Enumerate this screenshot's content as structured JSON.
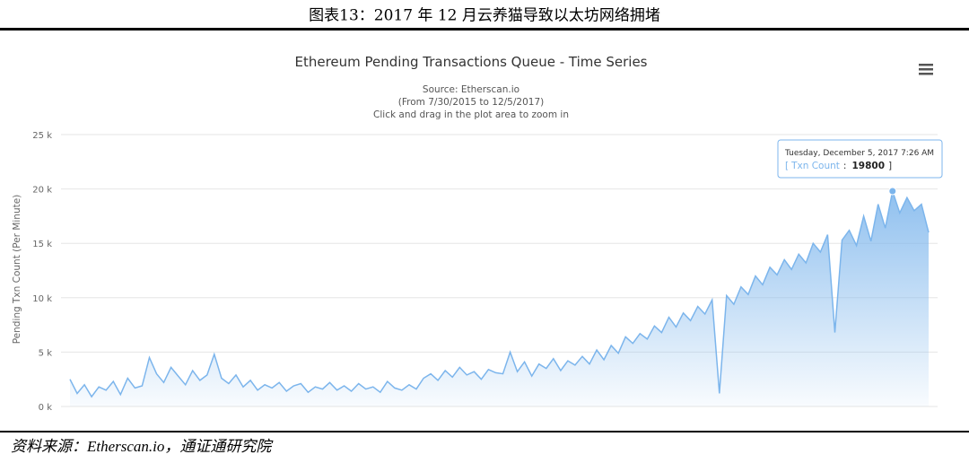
{
  "header": {
    "title": "图表13：2017 年 12 月云养猫导致以太坊网络拥堵"
  },
  "footer": {
    "source": "资料来源：Etherscan.io，通证通研究院"
  },
  "chart_data": {
    "type": "area",
    "title": "Ethereum Pending Transactions Queue - Time Series",
    "subtitle": [
      "Source: Etherscan.io",
      "(From 7/30/2015 to 12/5/2017)",
      "Click and drag in the plot area to zoom in"
    ],
    "y_label": "Pending Txn Count (Per Minute)",
    "ylim": [
      0,
      25000
    ],
    "yticks": [
      {
        "value": 0,
        "label": "0 k"
      },
      {
        "value": 5000,
        "label": "5 k"
      },
      {
        "value": 10000,
        "label": "10 k"
      },
      {
        "value": 15000,
        "label": "15 k"
      },
      {
        "value": 20000,
        "label": "20 k"
      },
      {
        "value": 25000,
        "label": "25 k"
      }
    ],
    "grid": true,
    "series": [
      {
        "name": "Txn Count",
        "color": "#7cb5ec",
        "values": [
          2500,
          1200,
          2000,
          900,
          1800,
          1500,
          2300,
          1100,
          2600,
          1700,
          1900,
          4500,
          3000,
          2200,
          3600,
          2800,
          2000,
          3300,
          2400,
          2900,
          4800,
          2600,
          2100,
          2900,
          1800,
          2400,
          1500,
          2000,
          1700,
          2200,
          1400,
          1900,
          2100,
          1300,
          1800,
          1600,
          2200,
          1500,
          1900,
          1400,
          2100,
          1600,
          1800,
          1300,
          2300,
          1700,
          1500,
          2000,
          1600,
          2600,
          3000,
          2400,
          3300,
          2700,
          3600,
          2900,
          3200,
          2500,
          3400,
          3100,
          3000,
          5000,
          3200,
          4100,
          2800,
          3900,
          3500,
          4400,
          3300,
          4200,
          3800,
          4600,
          3900,
          5200,
          4300,
          5600,
          4900,
          6400,
          5800,
          6700,
          6200,
          7400,
          6800,
          8200,
          7300,
          8600,
          7900,
          9200,
          8500,
          9800,
          1200,
          10200,
          9400,
          11000,
          10300,
          12000,
          11200,
          12800,
          12100,
          13500,
          12600,
          14000,
          13200,
          15000,
          14200,
          15800,
          6800,
          15300,
          16200,
          14800,
          17500,
          15200,
          18600,
          16400,
          19800,
          17800,
          19200,
          18000,
          18600,
          16000
        ]
      }
    ],
    "tooltip": {
      "date": "Tuesday, December 5, 2017 7:26 AM",
      "open": "[",
      "separator": ":",
      "value": 19800,
      "close": "]"
    }
  }
}
